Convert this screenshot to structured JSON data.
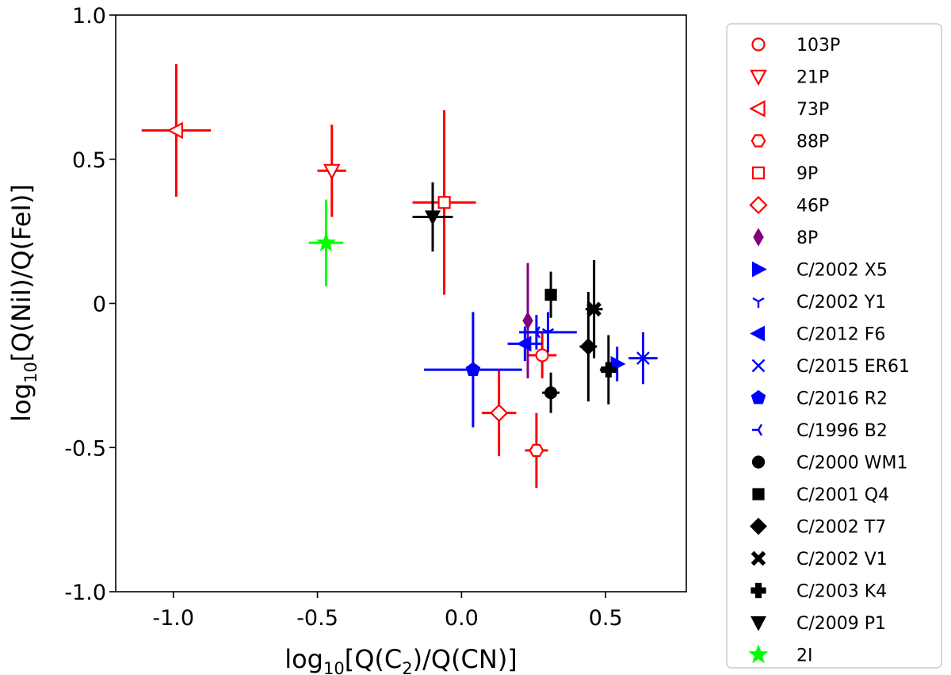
{
  "chart_data": {
    "type": "scatter",
    "xlabel": "log10[Q(C2)/Q(CN)]",
    "ylabel": "log10[Q(NiI)/Q(FeI)]",
    "xlim": [
      -1.2,
      0.78
    ],
    "ylim": [
      -1.0,
      1.0
    ],
    "x_ticks": [
      {
        "value": -1.0,
        "label": "-1.0"
      },
      {
        "value": -0.5,
        "label": "-0.5"
      },
      {
        "value": 0.0,
        "label": "0.0"
      },
      {
        "value": 0.5,
        "label": "0.5"
      }
    ],
    "y_ticks": [
      {
        "value": 1.0,
        "label": "1.0"
      },
      {
        "value": 0.5,
        "label": "0.5"
      },
      {
        "value": 0.0,
        "label": "0"
      },
      {
        "value": -0.5,
        "label": "-0.5"
      },
      {
        "value": -1.0,
        "label": "-1.0"
      }
    ],
    "grid": false,
    "legend_position": "outside-right",
    "series": [
      {
        "name": "103P",
        "color": "#ff0000",
        "marker": "circle-open",
        "x": 0.28,
        "y": -0.18,
        "xerr": 0.05,
        "yerr": 0.08
      },
      {
        "name": "21P",
        "color": "#ff0000",
        "marker": "triangle-down-open",
        "x": -0.45,
        "y": 0.46,
        "xerr": 0.05,
        "yerr": 0.16
      },
      {
        "name": "73P",
        "color": "#ff0000",
        "marker": "triangle-left-open",
        "x": -0.99,
        "y": 0.6,
        "xerr": 0.12,
        "yerr": 0.23
      },
      {
        "name": "88P",
        "color": "#ff0000",
        "marker": "hexagon-open",
        "x": 0.26,
        "y": -0.51,
        "xerr": 0.04,
        "yerr": 0.13
      },
      {
        "name": "9P",
        "color": "#ff0000",
        "marker": "square-open",
        "x": -0.06,
        "y": 0.35,
        "xerr": 0.11,
        "yerr": 0.32
      },
      {
        "name": "46P",
        "color": "#ff0000",
        "marker": "diamond-open",
        "x": 0.13,
        "y": -0.38,
        "xerr": 0.06,
        "yerr": 0.15
      },
      {
        "name": "8P",
        "color": "#800080",
        "marker": "thin-diamond",
        "x": 0.23,
        "y": -0.06,
        "xerr": 0.0,
        "yerr": 0.2
      },
      {
        "name": "C/2002 X5",
        "color": "#0000ff",
        "marker": "triangle-right",
        "x": 0.54,
        "y": -0.21,
        "xerr": 0.02,
        "yerr": 0.06
      },
      {
        "name": "C/2002 Y1",
        "color": "#0000ff",
        "marker": "tri-down",
        "x": 0.3,
        "y": -0.1,
        "xerr": 0.1,
        "yerr": 0.07
      },
      {
        "name": "C/2012 F6",
        "color": "#0000ff",
        "marker": "triangle-left",
        "x": 0.22,
        "y": -0.14,
        "xerr": 0.06,
        "yerr": 0.06
      },
      {
        "name": "C/2015 ER61",
        "color": "#0000ff",
        "marker": "x",
        "x": 0.63,
        "y": -0.19,
        "xerr": 0.05,
        "yerr": 0.09
      },
      {
        "name": "C/2016 R2",
        "color": "#0000ff",
        "marker": "pentagon",
        "x": 0.04,
        "y": -0.23,
        "xerr": 0.17,
        "yerr": 0.2
      },
      {
        "name": "C/1996 B2",
        "color": "#0000ff",
        "marker": "tri-left",
        "x": 0.26,
        "y": -0.1,
        "xerr": 0.04,
        "yerr": 0.06
      },
      {
        "name": "C/2000 WM1",
        "color": "#000000",
        "marker": "circle",
        "x": 0.31,
        "y": -0.31,
        "xerr": 0.03,
        "yerr": 0.07
      },
      {
        "name": "C/2001 Q4",
        "color": "#000000",
        "marker": "square",
        "x": 0.31,
        "y": 0.03,
        "xerr": 0.0,
        "yerr": 0.08
      },
      {
        "name": "C/2002 T7",
        "color": "#000000",
        "marker": "diamond",
        "x": 0.44,
        "y": -0.15,
        "xerr": 0.03,
        "yerr": 0.19
      },
      {
        "name": "C/2002 V1",
        "color": "#000000",
        "marker": "x-filled",
        "x": 0.46,
        "y": -0.02,
        "xerr": 0.03,
        "yerr": 0.17
      },
      {
        "name": "C/2003 K4",
        "color": "#000000",
        "marker": "plus-filled",
        "x": 0.51,
        "y": -0.23,
        "xerr": 0.03,
        "yerr": 0.12
      },
      {
        "name": "C/2009 P1",
        "color": "#000000",
        "marker": "triangle-down",
        "x": -0.1,
        "y": 0.3,
        "xerr": 0.07,
        "yerr": 0.12
      },
      {
        "name": "2I",
        "color": "#00ff00",
        "marker": "star",
        "x": -0.47,
        "y": 0.21,
        "xerr": 0.06,
        "yerr": 0.15
      }
    ]
  }
}
